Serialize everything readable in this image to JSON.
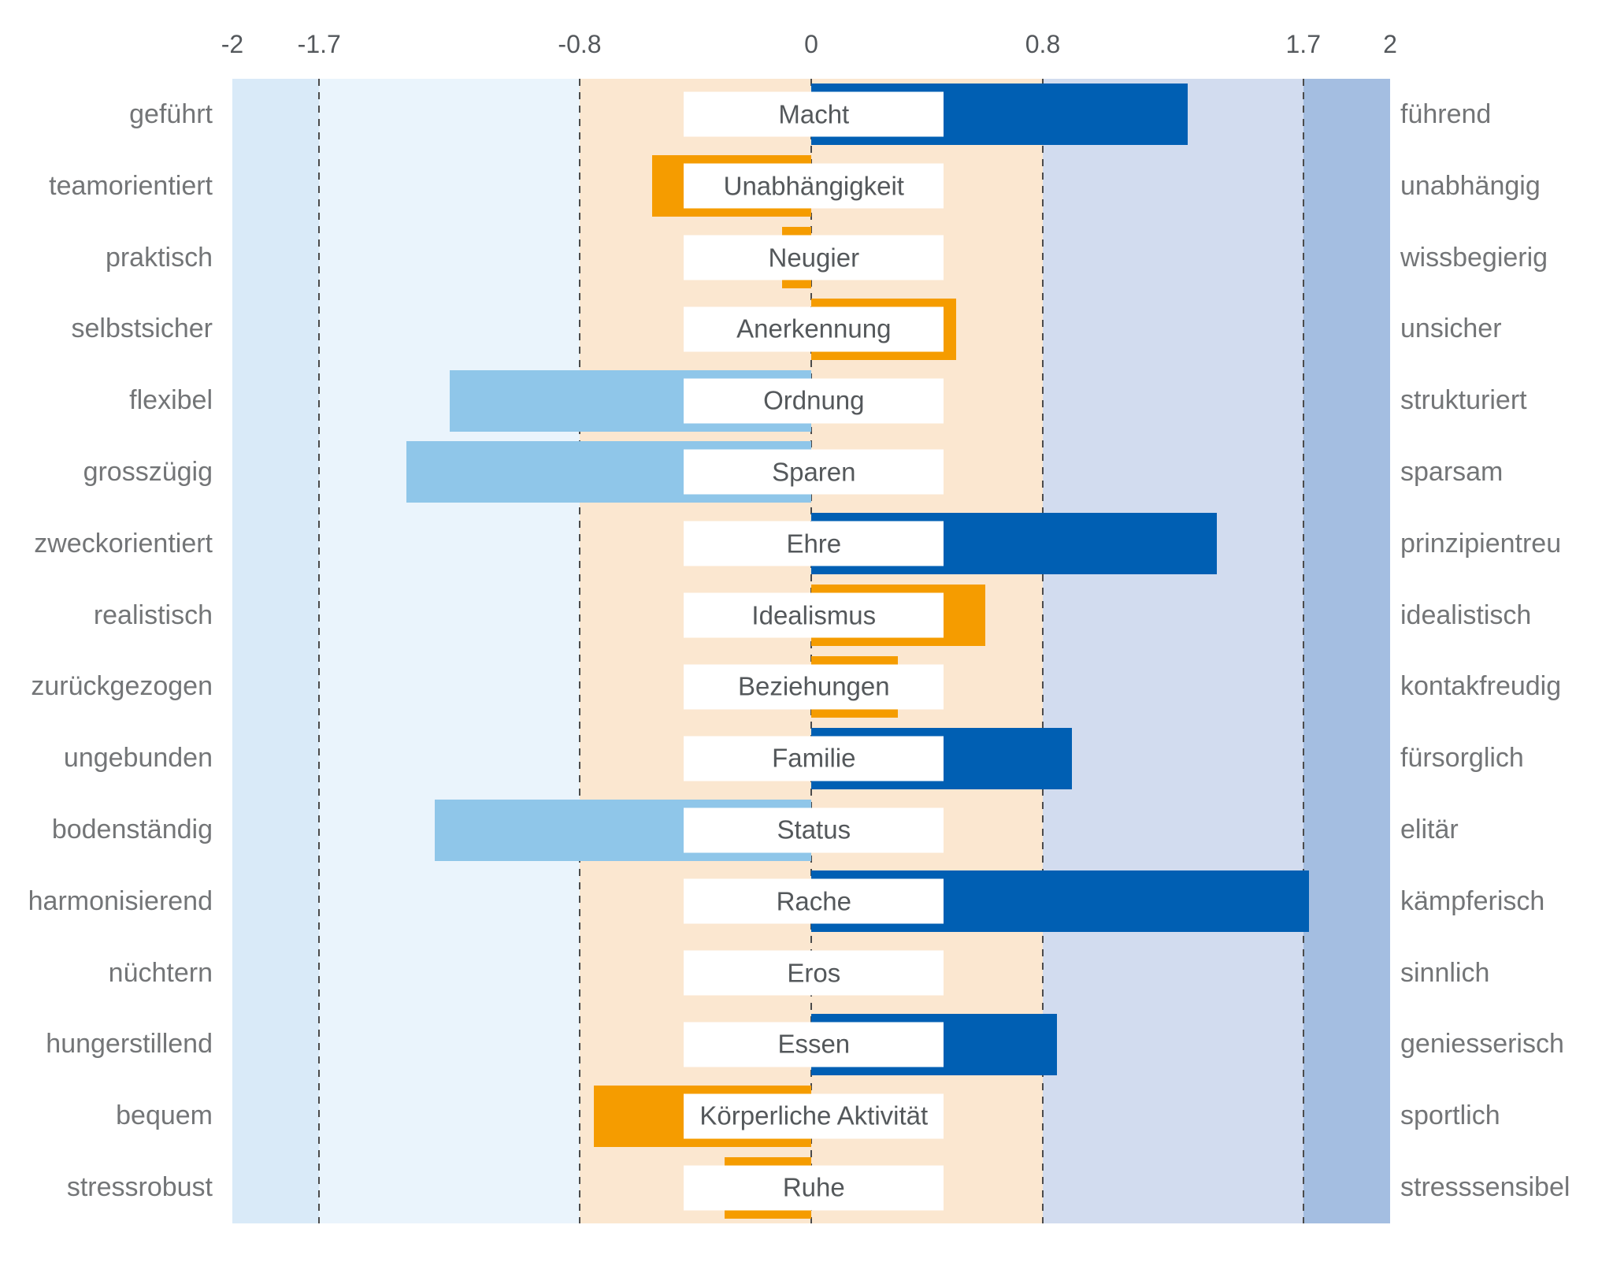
{
  "chart_data": {
    "type": "bar",
    "orientation": "horizontal",
    "title": "",
    "xlabel": "",
    "ylabel": "",
    "axis": {
      "range": [
        -2,
        2
      ],
      "ticks": [
        {
          "value": -2,
          "label": "-2"
        },
        {
          "value": -1.7,
          "label": "-1.7"
        },
        {
          "value": -0.8,
          "label": "-0.8"
        },
        {
          "value": 0,
          "label": "0"
        },
        {
          "value": 0.8,
          "label": "0.8"
        },
        {
          "value": 1.7,
          "label": "1.7"
        },
        {
          "value": 2,
          "label": "2"
        }
      ],
      "dashed_gridlines": [
        -1.7,
        -0.8,
        0,
        0.8,
        1.7
      ],
      "gridline_color": "#4b4b4b"
    },
    "zones": [
      {
        "from": -2,
        "to": -1.7,
        "color": "#d9eaf8"
      },
      {
        "from": -1.7,
        "to": -0.8,
        "color": "#eaf4fc"
      },
      {
        "from": -0.8,
        "to": 0.8,
        "color": "#fbe7d0"
      },
      {
        "from": 0.8,
        "to": 1.7,
        "color": "#d2dcef"
      },
      {
        "from": 1.7,
        "to": 2,
        "color": "#a4bee1"
      }
    ],
    "bar_colors": {
      "blue": "#005fb3",
      "orange": "#f59c00",
      "lightblue": "#8fc6e9"
    },
    "rows": [
      {
        "left": "geführt",
        "center": "Macht",
        "right": "führend",
        "value": 1.3,
        "color": "blue"
      },
      {
        "left": "teamorientiert",
        "center": "Unabhängigkeit",
        "right": "unabhängig",
        "value": -0.55,
        "color": "orange"
      },
      {
        "left": "praktisch",
        "center": "Neugier",
        "right": "wissbegierig",
        "value": -0.1,
        "color": "orange"
      },
      {
        "left": "selbstsicher",
        "center": "Anerkennung",
        "right": "unsicher",
        "value": 0.5,
        "color": "orange"
      },
      {
        "left": "flexibel",
        "center": "Ordnung",
        "right": "strukturiert",
        "value": -1.25,
        "color": "lightblue"
      },
      {
        "left": "grosszügig",
        "center": "Sparen",
        "right": "sparsam",
        "value": -1.4,
        "color": "lightblue"
      },
      {
        "left": "zweckorientiert",
        "center": "Ehre",
        "right": "prinzipientreu",
        "value": 1.4,
        "color": "blue"
      },
      {
        "left": "realistisch",
        "center": "Idealismus",
        "right": "idealistisch",
        "value": 0.6,
        "color": "orange"
      },
      {
        "left": "zurückgezogen",
        "center": "Beziehungen",
        "right": "kontakfreudig",
        "value": 0.3,
        "color": "orange"
      },
      {
        "left": "ungebunden",
        "center": "Familie",
        "right": "fürsorglich",
        "value": 0.9,
        "color": "blue"
      },
      {
        "left": "bodenständig",
        "center": "Status",
        "right": "elitär",
        "value": -1.3,
        "color": "lightblue"
      },
      {
        "left": "harmonisierend",
        "center": "Rache",
        "right": "kämpferisch",
        "value": 1.72,
        "color": "blue"
      },
      {
        "left": "nüchtern",
        "center": "Eros",
        "right": "sinnlich",
        "value": 0,
        "color": "none"
      },
      {
        "left": "hungerstillend",
        "center": "Essen",
        "right": "geniesserisch",
        "value": 0.85,
        "color": "blue"
      },
      {
        "left": "bequem",
        "center": "Körperliche Aktivität",
        "right": "sportlich",
        "value": -0.75,
        "color": "orange"
      },
      {
        "left": "stressrobust",
        "center": "Ruhe",
        "right": "stresssensibel",
        "value": -0.3,
        "color": "orange"
      }
    ]
  }
}
